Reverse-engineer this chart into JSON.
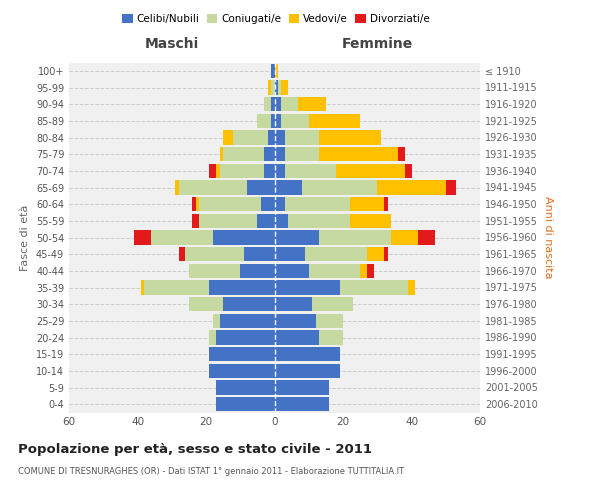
{
  "age_groups": [
    "0-4",
    "5-9",
    "10-14",
    "15-19",
    "20-24",
    "25-29",
    "30-34",
    "35-39",
    "40-44",
    "45-49",
    "50-54",
    "55-59",
    "60-64",
    "65-69",
    "70-74",
    "75-79",
    "80-84",
    "85-89",
    "90-94",
    "95-99",
    "100+"
  ],
  "birth_years": [
    "2006-2010",
    "2001-2005",
    "1996-2000",
    "1991-1995",
    "1986-1990",
    "1981-1985",
    "1976-1980",
    "1971-1975",
    "1966-1970",
    "1961-1965",
    "1956-1960",
    "1951-1955",
    "1946-1950",
    "1941-1945",
    "1936-1940",
    "1931-1935",
    "1926-1930",
    "1921-1925",
    "1916-1920",
    "1911-1915",
    "≤ 1910"
  ],
  "males": {
    "celibi": [
      17,
      17,
      19,
      19,
      17,
      16,
      15,
      19,
      10,
      9,
      18,
      5,
      4,
      8,
      3,
      3,
      2,
      1,
      1,
      0,
      1
    ],
    "coniugati": [
      0,
      0,
      0,
      0,
      2,
      2,
      10,
      19,
      15,
      17,
      18,
      17,
      18,
      20,
      13,
      12,
      10,
      4,
      2,
      1,
      0
    ],
    "vedovi": [
      0,
      0,
      0,
      0,
      0,
      0,
      0,
      1,
      0,
      0,
      0,
      0,
      1,
      1,
      1,
      1,
      3,
      0,
      0,
      1,
      0
    ],
    "divorziati": [
      0,
      0,
      0,
      0,
      0,
      0,
      0,
      0,
      0,
      2,
      5,
      2,
      1,
      0,
      2,
      0,
      0,
      0,
      0,
      0,
      0
    ]
  },
  "females": {
    "nubili": [
      16,
      16,
      19,
      19,
      13,
      12,
      11,
      19,
      10,
      9,
      13,
      4,
      3,
      8,
      3,
      3,
      3,
      2,
      2,
      1,
      0
    ],
    "coniugate": [
      0,
      0,
      0,
      0,
      7,
      8,
      12,
      20,
      15,
      18,
      21,
      18,
      19,
      22,
      15,
      10,
      10,
      8,
      5,
      1,
      0
    ],
    "vedove": [
      0,
      0,
      0,
      0,
      0,
      0,
      0,
      2,
      2,
      5,
      8,
      12,
      10,
      20,
      20,
      23,
      18,
      15,
      8,
      2,
      1
    ],
    "divorziate": [
      0,
      0,
      0,
      0,
      0,
      0,
      0,
      0,
      2,
      1,
      5,
      0,
      1,
      3,
      2,
      2,
      0,
      0,
      0,
      0,
      0
    ]
  },
  "colors": {
    "celibi": "#4472c4",
    "coniugati": "#c5d9a0",
    "vedovi": "#ffc000",
    "divorziati": "#e31a1c"
  },
  "xlim": 60,
  "title": "Popolazione per età, sesso e stato civile - 2011",
  "subtitle": "COMUNE DI TRESNURAGHES (OR) - Dati ISTAT 1° gennaio 2011 - Elaborazione TUTTITALIA.IT",
  "ylabel_left": "Fasce di età",
  "ylabel_right": "Anni di nascita",
  "xlabel_left": "Maschi",
  "xlabel_right": "Femmine",
  "bg_color": "#f0f0f0",
  "grid_color": "#cccccc"
}
